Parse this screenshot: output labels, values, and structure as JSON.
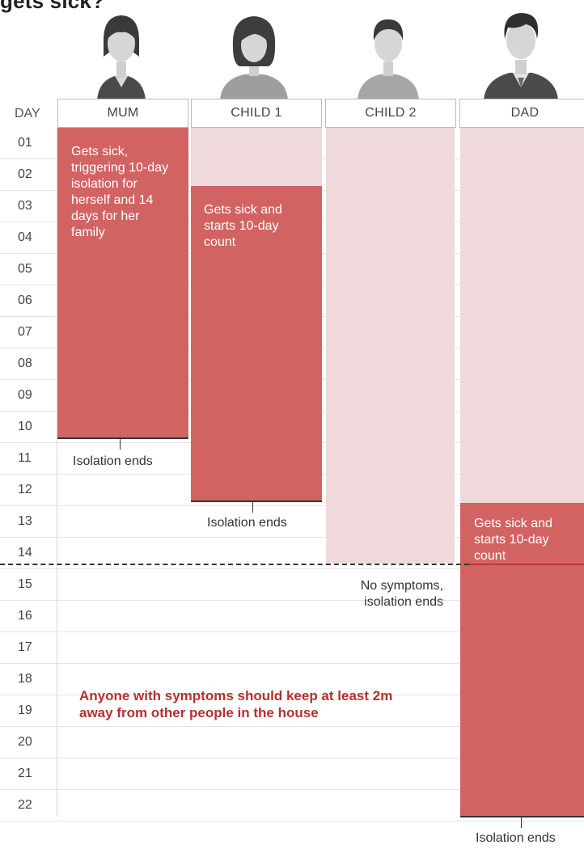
{
  "title": "gets sick?",
  "day_header": "DAY",
  "people": [
    {
      "name": "MUM",
      "icon": "woman-icon"
    },
    {
      "name": "CHILD 1",
      "icon": "girl-icon"
    },
    {
      "name": "CHILD 2",
      "icon": "boy-icon"
    },
    {
      "name": "DAD",
      "icon": "man-icon"
    }
  ],
  "days": [
    "01",
    "02",
    "03",
    "04",
    "05",
    "06",
    "07",
    "08",
    "09",
    "10",
    "11",
    "12",
    "13",
    "14",
    "15",
    "16",
    "17",
    "18",
    "19",
    "20",
    "21",
    "22"
  ],
  "mum": {
    "sick_text": "Gets sick, triggering 10-day isolation for herself and 14 days for her family",
    "isolation_ends": "Isolation ends"
  },
  "child1": {
    "sick_text": "Gets sick and starts 10-day count",
    "isolation_ends": "Isolation ends"
  },
  "child2": {
    "note": "No symptoms, isolation ends"
  },
  "dad": {
    "sick_text": "Gets sick and starts 10-day count",
    "isolation_ends": "Isolation ends"
  },
  "advice": "Anyone with symptoms should keep at least 2m away from other people in the house",
  "colors": {
    "isolation_light": "#efd9da",
    "sick_dark": "#d26363",
    "advice_text": "#b2322e"
  }
}
